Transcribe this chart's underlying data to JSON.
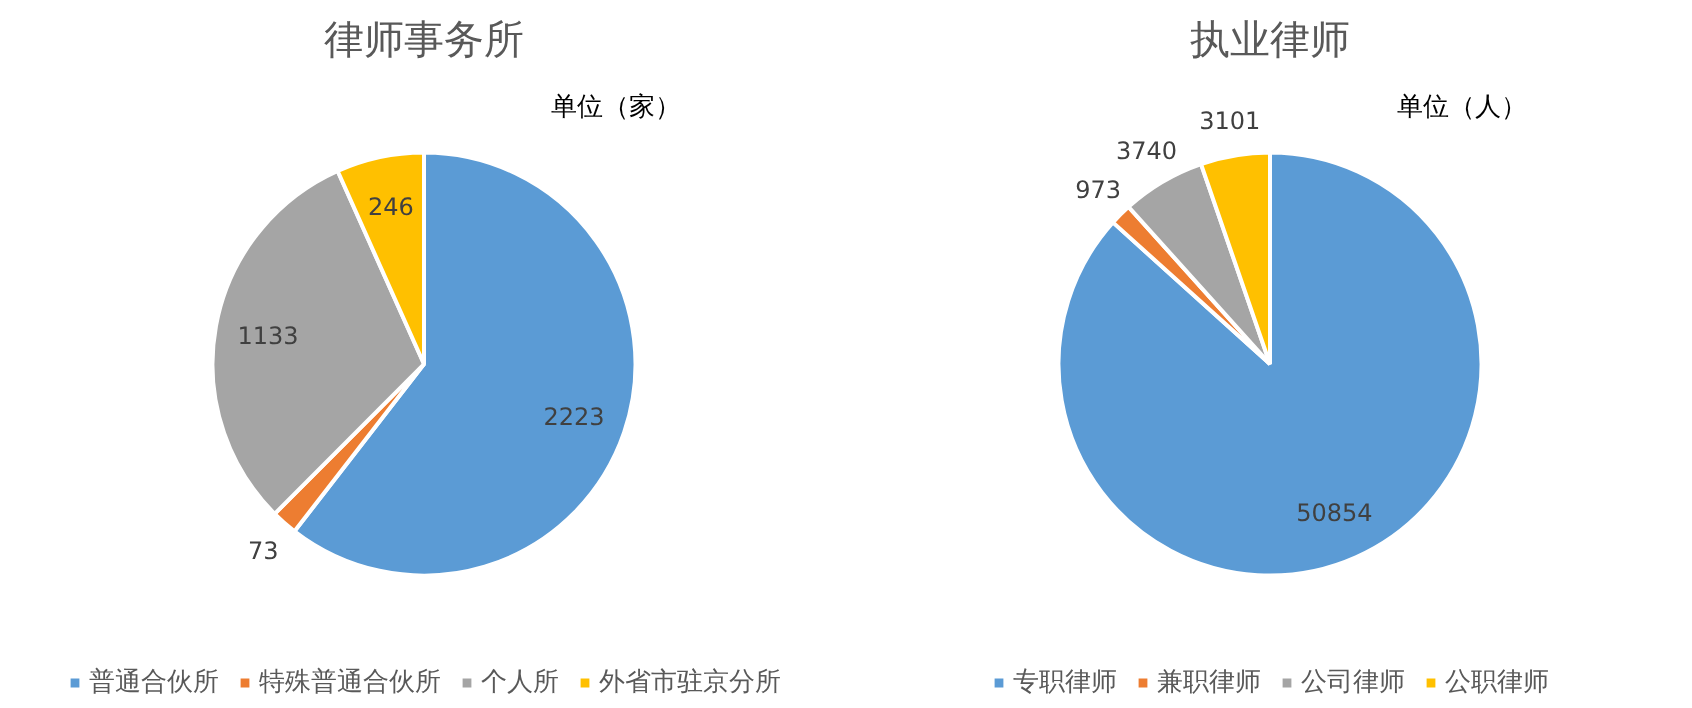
{
  "chart_data": [
    {
      "type": "pie",
      "title": "律师事务所",
      "annotations": [
        "单位（家）"
      ],
      "categories": [
        "普通合伙所",
        "特殊普通合伙所",
        "个人所",
        "外省市驻京分所"
      ],
      "values": [
        2223,
        73,
        1133,
        246
      ],
      "colors": [
        "#5b9bd5",
        "#ed7d31",
        "#a5a5a5",
        "#ffc000"
      ],
      "data_labels": true,
      "legend": "bottom"
    },
    {
      "type": "pie",
      "title": "执业律师",
      "annotations": [
        "单位（人）"
      ],
      "categories": [
        "专职律师",
        "兼职律师",
        "公司律师",
        "公职律师"
      ],
      "values": [
        50854,
        973,
        3740,
        3101
      ],
      "colors": [
        "#5b9bd5",
        "#ed7d31",
        "#a5a5a5",
        "#ffc000"
      ],
      "data_labels": true,
      "legend": "bottom"
    }
  ]
}
